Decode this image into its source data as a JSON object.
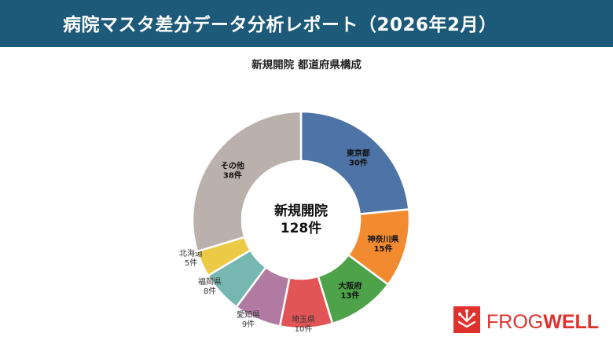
{
  "header": {
    "title": "病院マスタ差分データ分析レポート（2026年2月）"
  },
  "chart_data": {
    "type": "pie",
    "title": "新規開院 都道府県構成",
    "center_label": "新規開院",
    "center_value": "128件",
    "slices": [
      {
        "label": "東京都",
        "value": 30,
        "value_label": "30件",
        "color": "#4e73a6"
      },
      {
        "label": "神奈川県",
        "value": 15,
        "value_label": "15件",
        "color": "#f28b2f"
      },
      {
        "label": "大阪府",
        "value": 13,
        "value_label": "13件",
        "color": "#4ea24a"
      },
      {
        "label": "埼玉県",
        "value": 10,
        "value_label": "10件",
        "color": "#e25556"
      },
      {
        "label": "愛知県",
        "value": 9,
        "value_label": "9件",
        "color": "#b07aa1"
      },
      {
        "label": "福岡県",
        "value": 8,
        "value_label": "8件",
        "color": "#76b7b2"
      },
      {
        "label": "北海道",
        "value": 5,
        "value_label": "5件",
        "color": "#edc948"
      },
      {
        "label": "その他",
        "value": 38,
        "value_label": "38件",
        "color": "#bab0ac"
      }
    ]
  },
  "logo": {
    "text_a": "FROG",
    "text_b": "WELL",
    "color": "#e0322c"
  }
}
